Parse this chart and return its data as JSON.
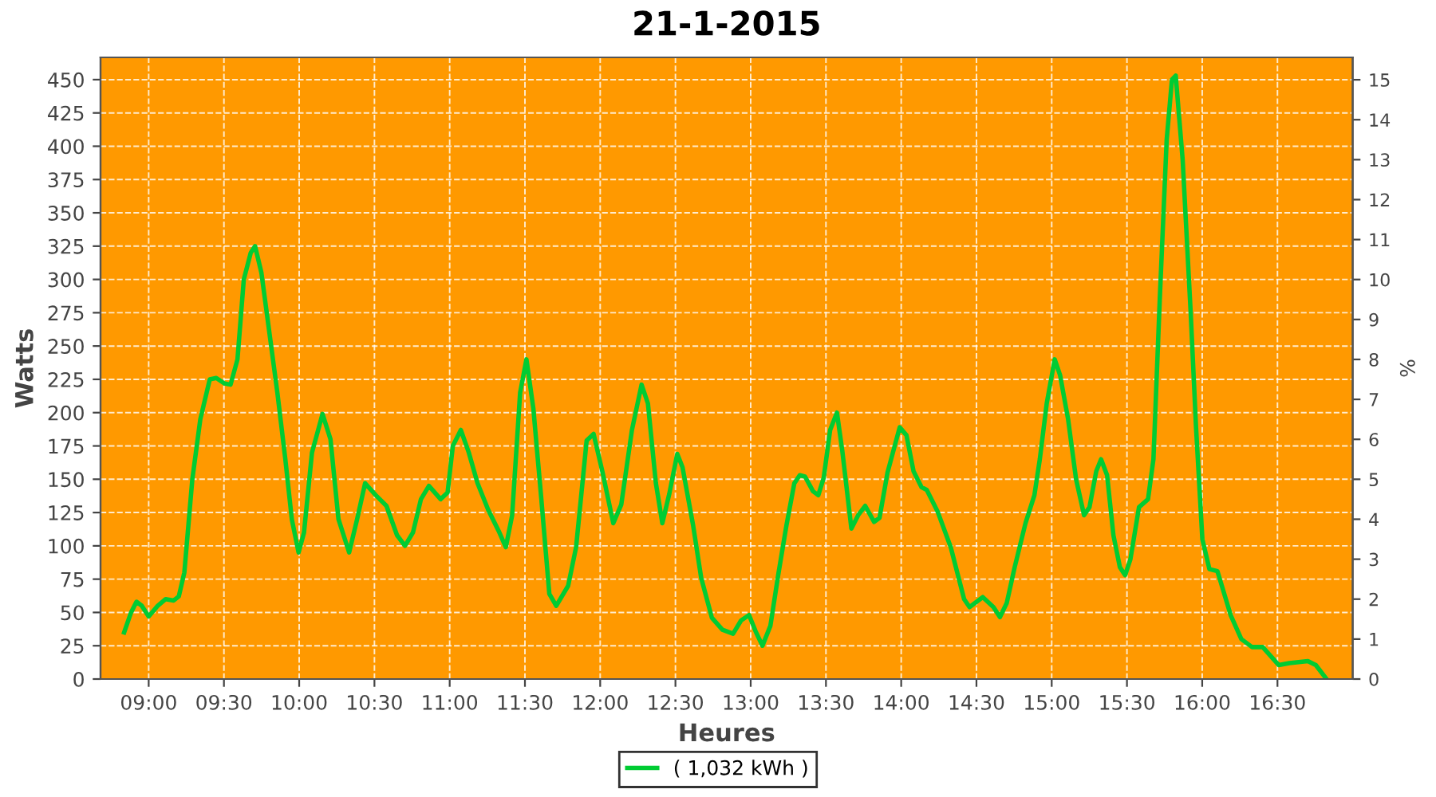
{
  "chart_data": {
    "type": "line",
    "title": "21-1-2015",
    "xlabel": "Heures",
    "ylabel": "Watts",
    "y2label": "%",
    "xlim": [
      8.68,
      17.0
    ],
    "xticks": [
      {
        "value": 9,
        "label": "09:00"
      },
      {
        "value": 9.5,
        "label": "09:30"
      },
      {
        "value": 10,
        "label": "10:00"
      },
      {
        "value": 10.5,
        "label": "10:30"
      },
      {
        "value": 11,
        "label": "11:00"
      },
      {
        "value": 11.5,
        "label": "11:30"
      },
      {
        "value": 12,
        "label": "12:00"
      },
      {
        "value": 12.5,
        "label": "12:30"
      },
      {
        "value": 13,
        "label": "13:00"
      },
      {
        "value": 13.5,
        "label": "13:30"
      },
      {
        "value": 14,
        "label": "14:00"
      },
      {
        "value": 14.5,
        "label": "14:30"
      },
      {
        "value": 15,
        "label": "15:00"
      },
      {
        "value": 15.5,
        "label": "15:30"
      },
      {
        "value": 16,
        "label": "16:00"
      },
      {
        "value": 16.5,
        "label": "16:30"
      }
    ],
    "ylim": [
      0,
      466.7
    ],
    "yticks": [
      0,
      25,
      50,
      75,
      100,
      125,
      150,
      175,
      200,
      225,
      250,
      275,
      300,
      325,
      350,
      375,
      400,
      425,
      450
    ],
    "y2lim": [
      0,
      15.56
    ],
    "y2ticks": [
      0,
      1,
      2,
      3,
      4,
      5,
      6,
      7,
      8,
      9,
      10,
      11,
      12,
      13,
      14,
      15
    ],
    "grid": true,
    "legend": "bottom",
    "marker": "none",
    "line_style": "solid",
    "series": [
      {
        "name": "( 1,032 kWh )",
        "color": "#00cc33",
        "x": [
          8.837,
          8.883,
          8.919,
          8.954,
          9.0,
          9.06,
          9.113,
          9.166,
          9.2,
          9.237,
          9.29,
          9.343,
          9.406,
          9.449,
          9.502,
          9.544,
          9.59,
          9.632,
          9.678,
          9.707,
          9.749,
          9.802,
          9.855,
          9.908,
          9.951,
          9.996,
          10.032,
          10.085,
          10.155,
          10.208,
          10.261,
          10.332,
          10.385,
          10.438,
          10.509,
          10.58,
          10.65,
          10.703,
          10.756,
          10.809,
          10.862,
          10.94,
          10.986,
          11.021,
          11.074,
          11.127,
          11.185,
          11.256,
          11.326,
          11.373,
          11.415,
          11.468,
          11.51,
          11.556,
          11.609,
          11.662,
          11.708,
          11.787,
          11.84,
          11.91,
          11.956,
          12.016,
          12.087,
          12.14,
          12.211,
          12.275,
          12.317,
          12.37,
          12.413,
          12.459,
          12.512,
          12.547,
          12.618,
          12.671,
          12.742,
          12.812,
          12.883,
          12.936,
          12.989,
          13.032,
          13.078,
          13.131,
          13.184,
          13.237,
          13.29,
          13.326,
          13.361,
          13.414,
          13.449,
          13.485,
          13.528,
          13.573,
          13.609,
          13.669,
          13.714,
          13.761,
          13.82,
          13.856,
          13.909,
          13.99,
          14.035,
          14.082,
          14.135,
          14.17,
          14.241,
          14.329,
          14.418,
          14.454,
          14.542,
          14.613,
          14.656,
          14.701,
          14.754,
          14.826,
          14.885,
          14.921,
          14.967,
          15.02,
          15.056,
          15.109,
          15.162,
          15.215,
          15.251,
          15.296,
          15.328,
          15.368,
          15.41,
          15.453,
          15.488,
          15.523,
          15.58,
          15.64,
          15.676,
          15.718,
          15.764,
          15.799,
          15.824,
          15.87,
          15.923,
          15.959,
          16.001,
          16.048,
          16.101,
          16.189,
          16.26,
          16.331,
          16.402,
          16.508,
          16.579,
          16.702,
          16.755,
          16.826
        ],
        "values": [
          35,
          50,
          58,
          55,
          47,
          55,
          60,
          59,
          62,
          80,
          150,
          195,
          225,
          226,
          222,
          221,
          240,
          300,
          320,
          325,
          305,
          260,
          215,
          165,
          120,
          95,
          110,
          170,
          199,
          180,
          120,
          95,
          120,
          147,
          138,
          130,
          108,
          100,
          110,
          135,
          145,
          135,
          140,
          175,
          187,
          170,
          147,
          127,
          111,
          99,
          123,
          215,
          240,
          203,
          135,
          64,
          55,
          70,
          99,
          179,
          184,
          155,
          117,
          131,
          187,
          221,
          207,
          147,
          117,
          139,
          169,
          159,
          115,
          76,
          46,
          37,
          34,
          44,
          48,
          36,
          25,
          40,
          79,
          115,
          147,
          153,
          152,
          141,
          138,
          151,
          187,
          200,
          171,
          113,
          123,
          130,
          118,
          121,
          155,
          189,
          183,
          156,
          144,
          142,
          126,
          99,
          60,
          54,
          61.5,
          54,
          46.5,
          57,
          84,
          117,
          138,
          165,
          207,
          240,
          228,
          195,
          150,
          123,
          129,
          156,
          165,
          153,
          108,
          84,
          78,
          90,
          129,
          135,
          165,
          285,
          405,
          450,
          453,
          390,
          276,
          189,
          105,
          82.5,
          81,
          48,
          30,
          24,
          24,
          10.5,
          12,
          13.5,
          10.5,
          0
        ]
      }
    ]
  }
}
